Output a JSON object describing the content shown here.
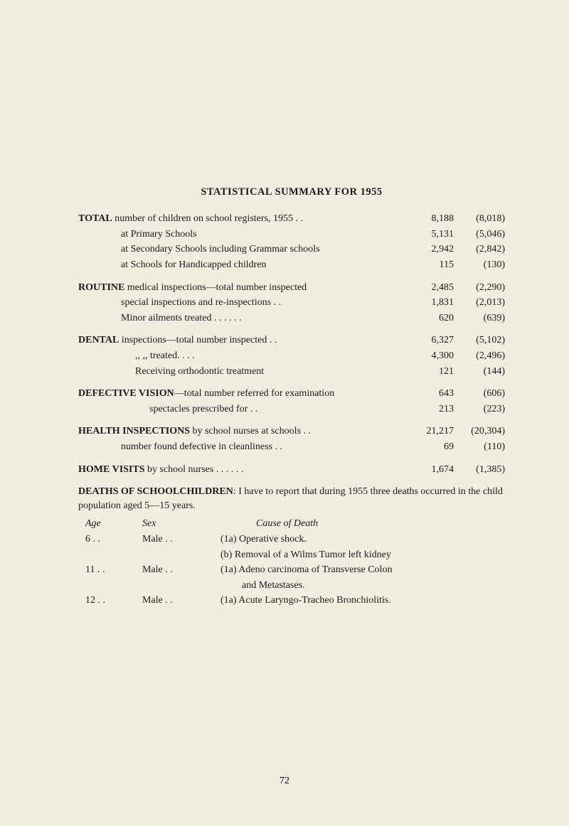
{
  "title": "STATISTICAL SUMMARY FOR 1955",
  "sections": [
    {
      "heading": "TOTAL",
      "rows": [
        {
          "label": " number of children on school registers, 1955 . .",
          "v1": "8,188",
          "v2": "(8,018)"
        },
        {
          "label": "at Primary Schools",
          "v1": "5,131",
          "v2": "(5,046)",
          "indent": 1,
          "dots": ". .              . .              . ."
        },
        {
          "label": "at Secondary Schools including Grammar schools",
          "v1": "2,942",
          "v2": "(2,842)",
          "indent": 1
        },
        {
          "label": "at Schools for Handicapped children",
          "v1": "115",
          "v2": "(130)",
          "indent": 1,
          "dots": "        . ."
        }
      ]
    },
    {
      "heading": "ROUTINE",
      "rows": [
        {
          "label": " medical inspections—total number inspected",
          "v1": "2,485",
          "v2": "(2,290)"
        },
        {
          "label": "special inspections and re-inspections     . .",
          "v1": "1,831",
          "v2": "(2,013)",
          "indent": 1
        },
        {
          "label": "Minor ailments treated . .          . .          . .",
          "v1": "620",
          "v2": "(639)",
          "indent": 1
        }
      ]
    },
    {
      "heading": "DENTAL",
      "rows": [
        {
          "label": " inspections—total number inspected            . .",
          "v1": "6,327",
          "v2": "(5,102)"
        },
        {
          "label": ",,       ,,       treated. .          . .",
          "v1": "4,300",
          "v2": "(2,496)",
          "indent": 2
        },
        {
          "label": "Receiving orthodontic treatment",
          "v1": "121",
          "v2": "(144)",
          "indent": 2
        }
      ]
    },
    {
      "heading": "DEFECTIVE VISION",
      "rows": [
        {
          "label": "—total number referred for examination",
          "v1": "643",
          "v2": "(606)"
        },
        {
          "label": "spectacles prescribed for           . .",
          "v1": "213",
          "v2": "(223)",
          "indent": 3
        }
      ]
    },
    {
      "heading": "HEALTH INSPECTIONS",
      "rows": [
        {
          "label": " by school nurses at schools . .",
          "v1": "21,217",
          "v2": "(20,304)"
        },
        {
          "label": "number found defective in cleanliness         . .",
          "v1": "69",
          "v2": "(110)",
          "indent": 1
        }
      ]
    },
    {
      "heading": "HOME VISITS",
      "rows": [
        {
          "label": " by school nurses  . .            . .            . .",
          "v1": "1,674",
          "v2": "(1,385)"
        }
      ]
    }
  ],
  "deaths": {
    "heading": "DEATHS OF SCHOOLCHILDREN",
    "intro": ": I have to report that during 1955 three deaths occurred in the child population aged 5—15 years.",
    "headers": {
      "age": "Age",
      "sex": "Sex",
      "cause": "Cause of Death"
    },
    "rows": [
      {
        "age": "6",
        "sex": "Male",
        "causes": [
          "(1a) Operative shock.",
          "(b) Removal of a Wilms Tumor left kidney"
        ]
      },
      {
        "age": "11",
        "sex": "Male",
        "causes": [
          "(1a) Adeno carcinoma of Transverse Colon",
          "and Metastases."
        ]
      },
      {
        "age": "12",
        "sex": "Male",
        "causes": [
          "(1a) Acute Laryngo-Tracheo Bronchiolitis."
        ]
      }
    ]
  },
  "pageNumber": "72"
}
